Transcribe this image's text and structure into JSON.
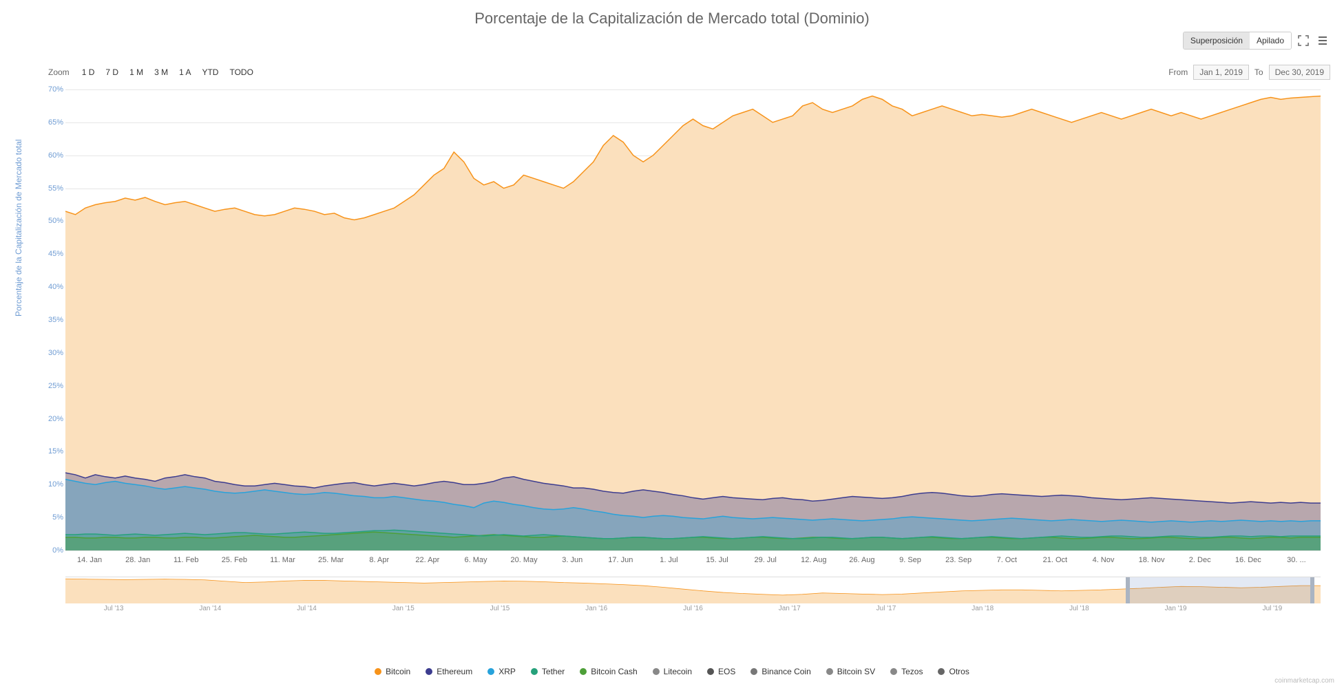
{
  "title": "Porcentaje de la Capitalización de Mercado total (Dominio)",
  "modes": {
    "superposicion": "Superposición",
    "apilado": "Apilado"
  },
  "zoom": {
    "label": "Zoom",
    "buttons": [
      "1 D",
      "7 D",
      "1 M",
      "3 M",
      "1 A",
      "YTD",
      "TODO"
    ]
  },
  "date_range": {
    "from_label": "From",
    "from": "Jan 1, 2019",
    "to_label": "To",
    "to": "Dec 30, 2019"
  },
  "y_axis": {
    "title": "Porcentaje de la Capitalización de Mercado total",
    "min": 0,
    "max": 70,
    "step": 5,
    "unit": "%",
    "label_color": "#6f9cd3",
    "grid_color": "#e6e6e6"
  },
  "x_axis": {
    "labels": [
      "14. Jan",
      "28. Jan",
      "11. Feb",
      "25. Feb",
      "11. Mar",
      "25. Mar",
      "8. Apr",
      "22. Apr",
      "6. May",
      "20. May",
      "3. Jun",
      "17. Jun",
      "1. Jul",
      "15. Jul",
      "29. Jul",
      "12. Aug",
      "26. Aug",
      "9. Sep",
      "23. Sep",
      "7. Oct",
      "21. Oct",
      "4. Nov",
      "18. Nov",
      "2. Dec",
      "16. Dec",
      "30. ..."
    ]
  },
  "chart": {
    "type": "area",
    "background": "#ffffff",
    "series": [
      {
        "name": "Bitcoin",
        "color": "#f7931a",
        "fill": "#fbe0bd",
        "values": [
          51.5,
          51.0,
          52.0,
          52.5,
          52.8,
          53.0,
          53.5,
          53.2,
          53.6,
          53.0,
          52.5,
          52.8,
          53.0,
          52.5,
          52.0,
          51.5,
          51.8,
          52.0,
          51.5,
          51.0,
          50.8,
          51.0,
          51.5,
          52.0,
          51.8,
          51.5,
          51.0,
          51.2,
          50.5,
          50.2,
          50.5,
          51.0,
          51.5,
          52.0,
          53.0,
          54.0,
          55.5,
          57.0,
          58.0,
          60.5,
          59.0,
          56.5,
          55.5,
          56.0,
          55.0,
          55.5,
          57.0,
          56.5,
          56.0,
          55.5,
          55.0,
          56.0,
          57.5,
          59.0,
          61.5,
          63.0,
          62.0,
          60.0,
          59.0,
          60.0,
          61.5,
          63.0,
          64.5,
          65.5,
          64.5,
          64.0,
          65.0,
          66.0,
          66.5,
          67.0,
          66.0,
          65.0,
          65.5,
          66.0,
          67.5,
          68.0,
          67.0,
          66.5,
          67.0,
          67.5,
          68.5,
          69.0,
          68.5,
          67.5,
          67.0,
          66.0,
          66.5,
          67.0,
          67.5,
          67.0,
          66.5,
          66.0,
          66.2,
          66.0,
          65.8,
          66.0,
          66.5,
          67.0,
          66.5,
          66.0,
          65.5,
          65.0,
          65.5,
          66.0,
          66.5,
          66.0,
          65.5,
          66.0,
          66.5,
          67.0,
          66.5,
          66.0,
          66.5,
          66.0,
          65.5,
          66.0,
          66.5,
          67.0,
          67.5,
          68.0,
          68.5,
          68.8,
          68.5,
          68.7,
          68.8,
          68.9,
          69.0
        ]
      },
      {
        "name": "Ethereum",
        "color": "#3c3c8f",
        "fill": "rgba(60,60,143,0.35)",
        "values": [
          11.8,
          11.5,
          11.0,
          11.5,
          11.2,
          11.0,
          11.3,
          11.0,
          10.8,
          10.5,
          11.0,
          11.2,
          11.5,
          11.2,
          11.0,
          10.5,
          10.3,
          10.0,
          9.8,
          9.8,
          10.0,
          10.2,
          10.0,
          9.8,
          9.7,
          9.5,
          9.8,
          10.0,
          10.2,
          10.3,
          10.0,
          9.8,
          10.0,
          10.2,
          10.0,
          9.8,
          10.0,
          10.3,
          10.5,
          10.3,
          10.0,
          10.0,
          10.2,
          10.5,
          11.0,
          11.2,
          10.8,
          10.5,
          10.2,
          10.0,
          9.8,
          9.5,
          9.5,
          9.3,
          9.0,
          8.8,
          8.7,
          9.0,
          9.2,
          9.0,
          8.8,
          8.5,
          8.3,
          8.0,
          7.8,
          8.0,
          8.2,
          8.0,
          7.9,
          7.8,
          7.7,
          7.9,
          8.0,
          7.8,
          7.7,
          7.5,
          7.6,
          7.8,
          8.0,
          8.2,
          8.1,
          8.0,
          7.9,
          8.0,
          8.2,
          8.5,
          8.7,
          8.8,
          8.7,
          8.5,
          8.3,
          8.2,
          8.3,
          8.5,
          8.6,
          8.5,
          8.4,
          8.3,
          8.2,
          8.3,
          8.4,
          8.3,
          8.2,
          8.0,
          7.9,
          7.8,
          7.7,
          7.8,
          7.9,
          8.0,
          7.9,
          7.8,
          7.7,
          7.6,
          7.5,
          7.4,
          7.3,
          7.2,
          7.3,
          7.4,
          7.3,
          7.2,
          7.3,
          7.2,
          7.3,
          7.2,
          7.2
        ]
      },
      {
        "name": "XRP",
        "color": "#27a2db",
        "fill": "rgba(39,162,219,0.35)",
        "values": [
          10.8,
          10.5,
          10.2,
          10.0,
          10.3,
          10.5,
          10.2,
          10.0,
          9.8,
          9.5,
          9.3,
          9.5,
          9.7,
          9.5,
          9.3,
          9.0,
          8.8,
          8.7,
          8.8,
          9.0,
          9.2,
          9.0,
          8.8,
          8.6,
          8.5,
          8.6,
          8.8,
          8.7,
          8.5,
          8.3,
          8.2,
          8.0,
          8.0,
          8.2,
          8.0,
          7.8,
          7.6,
          7.5,
          7.3,
          7.0,
          6.8,
          6.5,
          7.2,
          7.5,
          7.3,
          7.0,
          6.8,
          6.5,
          6.3,
          6.2,
          6.3,
          6.5,
          6.3,
          6.0,
          5.8,
          5.5,
          5.3,
          5.2,
          5.0,
          5.2,
          5.3,
          5.2,
          5.0,
          4.9,
          4.8,
          5.0,
          5.2,
          5.0,
          4.9,
          4.8,
          4.9,
          5.0,
          4.9,
          4.8,
          4.7,
          4.6,
          4.7,
          4.8,
          4.7,
          4.6,
          4.5,
          4.6,
          4.7,
          4.8,
          5.0,
          5.1,
          5.0,
          4.9,
          4.8,
          4.7,
          4.6,
          4.5,
          4.6,
          4.7,
          4.8,
          4.9,
          4.8,
          4.7,
          4.6,
          4.5,
          4.6,
          4.7,
          4.6,
          4.5,
          4.4,
          4.5,
          4.6,
          4.5,
          4.4,
          4.3,
          4.4,
          4.5,
          4.4,
          4.3,
          4.4,
          4.5,
          4.4,
          4.5,
          4.6,
          4.5,
          4.4,
          4.5,
          4.4,
          4.5,
          4.4,
          4.5,
          4.5
        ]
      },
      {
        "name": "Tether",
        "color": "#26a17b",
        "fill": "rgba(38,161,123,0.4)",
        "values": [
          2.4,
          2.4,
          2.5,
          2.5,
          2.4,
          2.3,
          2.4,
          2.5,
          2.4,
          2.3,
          2.4,
          2.5,
          2.6,
          2.5,
          2.4,
          2.5,
          2.6,
          2.7,
          2.7,
          2.6,
          2.5,
          2.5,
          2.6,
          2.7,
          2.8,
          2.7,
          2.6,
          2.6,
          2.7,
          2.8,
          2.9,
          3.0,
          3.0,
          3.1,
          3.0,
          2.9,
          2.8,
          2.7,
          2.6,
          2.5,
          2.4,
          2.3,
          2.2,
          2.3,
          2.4,
          2.3,
          2.2,
          2.3,
          2.4,
          2.3,
          2.2,
          2.1,
          2.0,
          1.9,
          1.8,
          1.8,
          1.9,
          2.0,
          2.0,
          1.9,
          1.8,
          1.8,
          1.9,
          2.0,
          2.1,
          2.0,
          1.9,
          1.8,
          1.9,
          2.0,
          2.1,
          2.0,
          1.9,
          1.8,
          1.8,
          1.9,
          2.0,
          2.0,
          1.9,
          1.8,
          1.9,
          2.0,
          2.0,
          1.9,
          1.8,
          1.9,
          2.0,
          2.1,
          2.0,
          1.9,
          1.8,
          1.9,
          2.0,
          2.1,
          2.0,
          1.9,
          1.8,
          1.9,
          2.0,
          2.1,
          2.2,
          2.1,
          2.0,
          2.0,
          2.1,
          2.2,
          2.2,
          2.1,
          2.0,
          2.0,
          2.1,
          2.2,
          2.2,
          2.1,
          2.0,
          2.0,
          2.1,
          2.2,
          2.2,
          2.1,
          2.2,
          2.2,
          2.1,
          2.2,
          2.2,
          2.2,
          2.2
        ]
      },
      {
        "name": "Bitcoin Cash",
        "color": "#4d9f38",
        "fill": "rgba(77,159,56,0.35)",
        "values": [
          2.0,
          2.0,
          1.9,
          1.9,
          2.0,
          2.0,
          1.9,
          1.9,
          2.0,
          2.0,
          1.9,
          1.9,
          2.0,
          2.0,
          1.9,
          1.9,
          2.0,
          2.1,
          2.2,
          2.3,
          2.2,
          2.1,
          2.0,
          2.0,
          2.1,
          2.2,
          2.3,
          2.4,
          2.5,
          2.6,
          2.7,
          2.8,
          2.7,
          2.6,
          2.5,
          2.4,
          2.3,
          2.2,
          2.1,
          2.0,
          2.1,
          2.2,
          2.3,
          2.4,
          2.3,
          2.2,
          2.1,
          2.0,
          2.0,
          2.1,
          2.2,
          2.1,
          2.0,
          1.9,
          1.8,
          1.8,
          1.9,
          2.0,
          2.0,
          1.9,
          1.8,
          1.8,
          1.9,
          2.0,
          2.0,
          1.9,
          1.8,
          1.8,
          1.9,
          2.0,
          2.0,
          1.9,
          1.8,
          1.8,
          1.9,
          2.0,
          2.0,
          1.9,
          1.8,
          1.8,
          1.9,
          2.0,
          2.0,
          1.9,
          1.8,
          1.9,
          2.0,
          2.0,
          1.9,
          1.8,
          1.8,
          1.9,
          2.0,
          2.0,
          1.9,
          1.8,
          1.8,
          1.9,
          2.0,
          2.0,
          1.9,
          1.8,
          1.8,
          1.9,
          2.0,
          2.0,
          1.9,
          1.8,
          1.8,
          1.9,
          2.0,
          2.0,
          1.9,
          1.8,
          1.8,
          1.9,
          2.0,
          2.0,
          1.9,
          1.8,
          1.9,
          2.0,
          2.0,
          1.9,
          2.0,
          2.0,
          2.0
        ]
      }
    ]
  },
  "navigator": {
    "color": "#f7931a",
    "x_labels": [
      "Jul '13",
      "Jan '14",
      "Jul '14",
      "Jan '15",
      "Jul '15",
      "Jan '16",
      "Jul '16",
      "Jan '17",
      "Jul '17",
      "Jan '18",
      "Jul '18",
      "Jan '19",
      "Jul '19"
    ],
    "selection_start_pct": 84.5,
    "selection_end_pct": 99.5,
    "values": [
      94,
      93,
      92,
      91,
      92,
      93,
      92,
      90,
      85,
      80,
      82,
      86,
      88,
      88,
      86,
      84,
      82,
      80,
      78,
      80,
      82,
      84,
      86,
      85,
      83,
      80,
      78,
      75,
      72,
      68,
      62,
      55,
      48,
      42,
      38,
      35,
      32,
      35,
      40,
      38,
      36,
      34,
      36,
      40,
      44,
      48,
      50,
      52,
      52,
      50,
      48,
      50,
      52,
      55,
      58,
      62,
      65,
      64,
      62,
      60,
      62,
      65,
      68,
      68
    ]
  },
  "legend": [
    {
      "label": "Bitcoin",
      "color": "#f7931a"
    },
    {
      "label": "Ethereum",
      "color": "#3c3c8f"
    },
    {
      "label": "XRP",
      "color": "#27a2db"
    },
    {
      "label": "Tether",
      "color": "#26a17b"
    },
    {
      "label": "Bitcoin Cash",
      "color": "#4d9f38"
    },
    {
      "label": "Litecoin",
      "color": "#888888"
    },
    {
      "label": "EOS",
      "color": "#555555"
    },
    {
      "label": "Binance Coin",
      "color": "#777777"
    },
    {
      "label": "Bitcoin SV",
      "color": "#888888"
    },
    {
      "label": "Tezos",
      "color": "#888888"
    },
    {
      "label": "Otros",
      "color": "#666666"
    }
  ],
  "credit": "coinmarketcap.com"
}
